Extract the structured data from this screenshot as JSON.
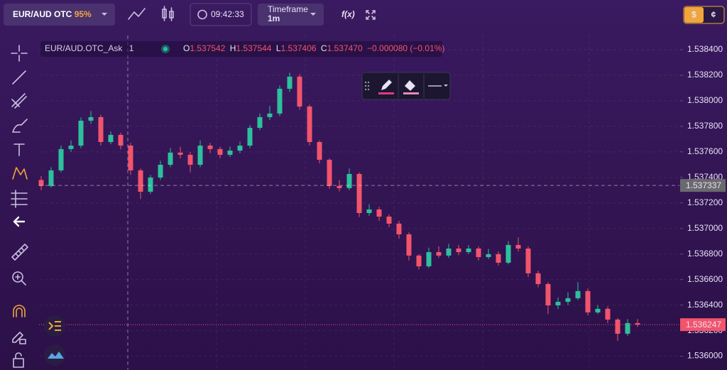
{
  "toolbar": {
    "asset": "EUR/AUD OTC",
    "payout": "95%",
    "time": "09:42:33",
    "timeframe_label": "Timeframe",
    "timeframe": "1m",
    "indicators": "f(x)",
    "currency_dollar": "$",
    "currency_cent": "¢"
  },
  "legend": {
    "symbol": "EUR/AUD.OTC_Ask",
    "interval": "1",
    "open_label": "O",
    "open": "1.537542",
    "high_label": "H",
    "high": "1.537544",
    "low_label": "L",
    "low": "1.537406",
    "close_label": "C",
    "close": "1.537470",
    "change": "−0.000080 (−0.01%)"
  },
  "chart_data": {
    "type": "candlestick",
    "open": [
      1.53738,
      1.537333,
      1.537455,
      1.537622,
      1.537649,
      1.537844,
      1.537872,
      1.537677,
      1.537733,
      1.537649,
      1.537455,
      1.537288,
      1.537399,
      1.537499,
      1.537594,
      1.537577,
      1.537499,
      1.537649,
      1.537622,
      1.537577,
      1.53761,
      1.537649,
      1.537788,
      1.537872,
      1.5379,
      1.538094,
      1.538189,
      1.537955,
      1.537677,
      1.537538,
      1.537333,
      1.537316,
      1.537427,
      1.537121,
      1.537149,
      1.537093,
      1.537038,
      1.536954,
      1.536788,
      1.536704,
      1.536815,
      1.536788,
      1.536843,
      1.536815,
      1.536843,
      1.536776,
      1.536799,
      1.536732,
      1.536871,
      1.536843,
      1.536649,
      1.536565,
      1.536398,
      1.536426,
      1.536454,
      1.53651,
      1.536343,
      1.536371,
      1.536287,
      1.536176,
      1.536259
    ],
    "high": [
      1.53741,
      1.53748,
      1.53765,
      1.53769,
      1.53787,
      1.53792,
      1.53789,
      1.53776,
      1.53775,
      1.53767,
      1.53747,
      1.53742,
      1.53753,
      1.53763,
      1.53764,
      1.5376,
      1.53769,
      1.53767,
      1.53764,
      1.53764,
      1.53768,
      1.53781,
      1.5379,
      1.53796,
      1.53812,
      1.53822,
      1.53821,
      1.53797,
      1.53769,
      1.53755,
      1.53738,
      1.53747,
      1.53744,
      1.53719,
      1.53717,
      1.53711,
      1.53706,
      1.53697,
      1.5368,
      1.53685,
      1.53686,
      1.53688,
      1.53687,
      1.53687,
      1.53686,
      1.53684,
      1.53682,
      1.5369,
      1.53693,
      1.53686,
      1.53667,
      1.53658,
      1.53646,
      1.5365,
      1.53658,
      1.53653,
      1.5364,
      1.53639,
      1.5363,
      1.53629,
      1.53629
    ],
    "low": [
      1.5373,
      1.53732,
      1.53744,
      1.5376,
      1.53763,
      1.53782,
      1.53765,
      1.53766,
      1.53762,
      1.53742,
      1.53723,
      1.53727,
      1.53738,
      1.53748,
      1.53755,
      1.53744,
      1.53748,
      1.53759,
      1.53755,
      1.53756,
      1.53759,
      1.53763,
      1.53777,
      1.53785,
      1.53788,
      1.53807,
      1.53793,
      1.53765,
      1.53751,
      1.53731,
      1.53729,
      1.5373,
      1.53709,
      1.5371,
      1.53706,
      1.53701,
      1.53692,
      1.53675,
      1.53668,
      1.53669,
      1.53677,
      1.53677,
      1.53679,
      1.5368,
      1.53675,
      1.53676,
      1.53671,
      1.53672,
      1.53682,
      1.53662,
      1.53654,
      1.53633,
      1.53637,
      1.5364,
      1.53644,
      1.53632,
      1.53633,
      1.53626,
      1.53612,
      1.53616,
      1.53623
    ],
    "close": [
      1.537333,
      1.537455,
      1.537622,
      1.537649,
      1.537844,
      1.537872,
      1.537677,
      1.537733,
      1.537649,
      1.537455,
      1.537288,
      1.537399,
      1.537499,
      1.537594,
      1.537577,
      1.537499,
      1.537649,
      1.537622,
      1.537577,
      1.53761,
      1.537649,
      1.537788,
      1.537872,
      1.5379,
      1.538094,
      1.538189,
      1.537955,
      1.537677,
      1.537538,
      1.537333,
      1.537316,
      1.537427,
      1.537121,
      1.537149,
      1.537093,
      1.537038,
      1.536954,
      1.536788,
      1.536704,
      1.536815,
      1.536788,
      1.536843,
      1.536815,
      1.536843,
      1.536776,
      1.536799,
      1.536732,
      1.536871,
      1.536843,
      1.536649,
      1.536565,
      1.536398,
      1.536426,
      1.536454,
      1.53651,
      1.536343,
      1.536371,
      1.536287,
      1.536176,
      1.536259,
      1.536247
    ],
    "up_color": "#2cc09c",
    "down_color": "#f2546c",
    "ylim": [
      1.535892,
      1.538511
    ],
    "yticks": [
      {
        "value": 1.5384,
        "label": "1.538400"
      },
      {
        "value": 1.5382,
        "label": "1.538200"
      },
      {
        "value": 1.538,
        "label": "1.538000"
      },
      {
        "value": 1.5378,
        "label": "1.537800"
      },
      {
        "value": 1.5376,
        "label": "1.537600"
      },
      {
        "value": 1.5374,
        "label": "1.537400"
      },
      {
        "value": 1.5372,
        "label": "1.537200"
      },
      {
        "value": 1.537,
        "label": "1.537000"
      },
      {
        "value": 1.5368,
        "label": "1.536800"
      },
      {
        "value": 1.5366,
        "label": "1.536600"
      },
      {
        "value": 1.5364,
        "label": "1.536400"
      },
      {
        "value": 1.5362,
        "label": "1.536200"
      },
      {
        "value": 1.536,
        "label": "1.536000"
      }
    ],
    "crosshair_price": 1.537337,
    "last_price": 1.536247,
    "grid": true
  }
}
